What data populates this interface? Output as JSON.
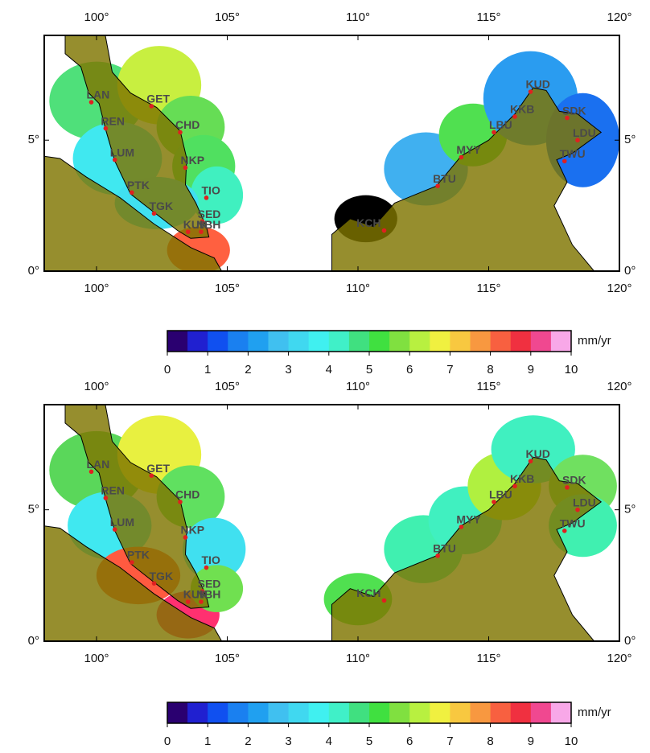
{
  "panels": [
    {
      "lon_range": [
        98,
        120
      ],
      "lat_range": [
        0,
        9
      ],
      "lon_ticks": [
        {
          "value": 100,
          "label": "100°"
        },
        {
          "value": 105,
          "label": "105°"
        },
        {
          "value": 110,
          "label": "110°"
        },
        {
          "value": 115,
          "label": "115°"
        },
        {
          "value": 120,
          "label": "120°"
        }
      ],
      "lat_ticks": [
        {
          "value": 0,
          "label": "0°"
        },
        {
          "value": 5,
          "label": "5°"
        }
      ],
      "stations": [
        "LAN",
        "REN",
        "GET",
        "CHD",
        "LUM",
        "NKP",
        "PTK",
        "TIO",
        "TGK",
        "SED",
        "KUK",
        "NBH",
        "KCH",
        "BTU",
        "MYY",
        "LBU",
        "KKB",
        "KUD",
        "SDK",
        "LDU",
        "TWU"
      ]
    },
    {
      "lon_range": [
        98,
        120
      ],
      "lat_range": [
        0,
        9
      ],
      "lon_ticks": [
        {
          "value": 100,
          "label": "100°"
        },
        {
          "value": 105,
          "label": "105°"
        },
        {
          "value": 110,
          "label": "110°"
        },
        {
          "value": 115,
          "label": "115°"
        },
        {
          "value": 120,
          "label": "120°"
        }
      ],
      "lat_ticks": [
        {
          "value": 0,
          "label": "0°"
        },
        {
          "value": 5,
          "label": "5°"
        }
      ],
      "stations": [
        "LAN",
        "REN",
        "GET",
        "CHD",
        "LUM",
        "NKP",
        "PTK",
        "TIO",
        "TGK",
        "SED",
        "KUK",
        "NBH",
        "KCH",
        "BTU",
        "MYY",
        "LBU",
        "KKB",
        "KUD",
        "SDK",
        "LDU",
        "TWU"
      ]
    }
  ],
  "colorbars": [
    {
      "range": [
        0,
        10
      ],
      "ticks": [
        0,
        1,
        2,
        3,
        4,
        5,
        6,
        7,
        8,
        9,
        10
      ],
      "unit": "mm/yr",
      "colors": [
        "#2a0070",
        "#2020d0",
        "#1050f0",
        "#1a80f0",
        "#20a0f0",
        "#40c0f0",
        "#40d8f0",
        "#40f0f0",
        "#40f0c8",
        "#40e080",
        "#40e040",
        "#80e040",
        "#b8f040",
        "#f0f040",
        "#f8c840",
        "#f89840",
        "#f86040",
        "#f03040",
        "#f04890",
        "#f8a8e8"
      ]
    },
    {
      "range": [
        0,
        10
      ],
      "ticks": [
        0,
        1,
        2,
        3,
        4,
        5,
        6,
        7,
        8,
        9,
        10
      ],
      "unit": "mm/yr",
      "colors": [
        "#2a0070",
        "#2020d0",
        "#1050f0",
        "#1a80f0",
        "#20a0f0",
        "#40c0f0",
        "#40d8f0",
        "#40f0f0",
        "#40f0c8",
        "#40e080",
        "#40e040",
        "#80e040",
        "#b8f040",
        "#f0f040",
        "#f8c840",
        "#f89840",
        "#f86040",
        "#f03040",
        "#f04890",
        "#f8a8e8"
      ]
    }
  ]
}
